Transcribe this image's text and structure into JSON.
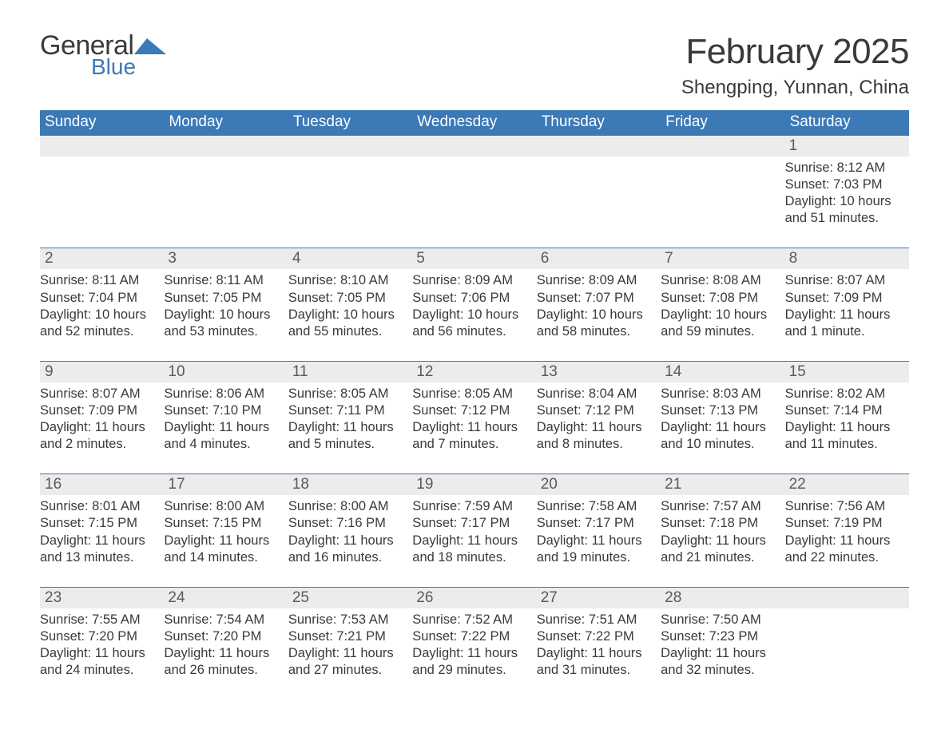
{
  "brand": {
    "word1": "General",
    "word2": "Blue",
    "swoosh_color": "#3b79b7"
  },
  "title": "February 2025",
  "location": "Shengping, Yunnan, China",
  "colors": {
    "header_bg": "#3b79b7",
    "header_text": "#ffffff",
    "daynum_bg": "#ececec",
    "text": "#3a3a3a",
    "rule": "#3b79b7"
  },
  "dow": [
    "Sunday",
    "Monday",
    "Tuesday",
    "Wednesday",
    "Thursday",
    "Friday",
    "Saturday"
  ],
  "labels": {
    "sunrise": "Sunrise:",
    "sunset": "Sunset:",
    "daylight": "Daylight:"
  },
  "weeks": [
    [
      {
        "empty": true
      },
      {
        "empty": true
      },
      {
        "empty": true
      },
      {
        "empty": true
      },
      {
        "empty": true
      },
      {
        "empty": true
      },
      {
        "n": "1",
        "sr": "8:12 AM",
        "ss": "7:03 PM",
        "dl": "10 hours and 51 minutes."
      }
    ],
    [
      {
        "n": "2",
        "sr": "8:11 AM",
        "ss": "7:04 PM",
        "dl": "10 hours and 52 minutes."
      },
      {
        "n": "3",
        "sr": "8:11 AM",
        "ss": "7:05 PM",
        "dl": "10 hours and 53 minutes."
      },
      {
        "n": "4",
        "sr": "8:10 AM",
        "ss": "7:05 PM",
        "dl": "10 hours and 55 minutes."
      },
      {
        "n": "5",
        "sr": "8:09 AM",
        "ss": "7:06 PM",
        "dl": "10 hours and 56 minutes."
      },
      {
        "n": "6",
        "sr": "8:09 AM",
        "ss": "7:07 PM",
        "dl": "10 hours and 58 minutes."
      },
      {
        "n": "7",
        "sr": "8:08 AM",
        "ss": "7:08 PM",
        "dl": "10 hours and 59 minutes."
      },
      {
        "n": "8",
        "sr": "8:07 AM",
        "ss": "7:09 PM",
        "dl": "11 hours and 1 minute."
      }
    ],
    [
      {
        "n": "9",
        "sr": "8:07 AM",
        "ss": "7:09 PM",
        "dl": "11 hours and 2 minutes."
      },
      {
        "n": "10",
        "sr": "8:06 AM",
        "ss": "7:10 PM",
        "dl": "11 hours and 4 minutes."
      },
      {
        "n": "11",
        "sr": "8:05 AM",
        "ss": "7:11 PM",
        "dl": "11 hours and 5 minutes."
      },
      {
        "n": "12",
        "sr": "8:05 AM",
        "ss": "7:12 PM",
        "dl": "11 hours and 7 minutes."
      },
      {
        "n": "13",
        "sr": "8:04 AM",
        "ss": "7:12 PM",
        "dl": "11 hours and 8 minutes."
      },
      {
        "n": "14",
        "sr": "8:03 AM",
        "ss": "7:13 PM",
        "dl": "11 hours and 10 minutes."
      },
      {
        "n": "15",
        "sr": "8:02 AM",
        "ss": "7:14 PM",
        "dl": "11 hours and 11 minutes."
      }
    ],
    [
      {
        "n": "16",
        "sr": "8:01 AM",
        "ss": "7:15 PM",
        "dl": "11 hours and 13 minutes."
      },
      {
        "n": "17",
        "sr": "8:00 AM",
        "ss": "7:15 PM",
        "dl": "11 hours and 14 minutes."
      },
      {
        "n": "18",
        "sr": "8:00 AM",
        "ss": "7:16 PM",
        "dl": "11 hours and 16 minutes."
      },
      {
        "n": "19",
        "sr": "7:59 AM",
        "ss": "7:17 PM",
        "dl": "11 hours and 18 minutes."
      },
      {
        "n": "20",
        "sr": "7:58 AM",
        "ss": "7:17 PM",
        "dl": "11 hours and 19 minutes."
      },
      {
        "n": "21",
        "sr": "7:57 AM",
        "ss": "7:18 PM",
        "dl": "11 hours and 21 minutes."
      },
      {
        "n": "22",
        "sr": "7:56 AM",
        "ss": "7:19 PM",
        "dl": "11 hours and 22 minutes."
      }
    ],
    [
      {
        "n": "23",
        "sr": "7:55 AM",
        "ss": "7:20 PM",
        "dl": "11 hours and 24 minutes."
      },
      {
        "n": "24",
        "sr": "7:54 AM",
        "ss": "7:20 PM",
        "dl": "11 hours and 26 minutes."
      },
      {
        "n": "25",
        "sr": "7:53 AM",
        "ss": "7:21 PM",
        "dl": "11 hours and 27 minutes."
      },
      {
        "n": "26",
        "sr": "7:52 AM",
        "ss": "7:22 PM",
        "dl": "11 hours and 29 minutes."
      },
      {
        "n": "27",
        "sr": "7:51 AM",
        "ss": "7:22 PM",
        "dl": "11 hours and 31 minutes."
      },
      {
        "n": "28",
        "sr": "7:50 AM",
        "ss": "7:23 PM",
        "dl": "11 hours and 32 minutes."
      },
      {
        "empty": true
      }
    ]
  ]
}
